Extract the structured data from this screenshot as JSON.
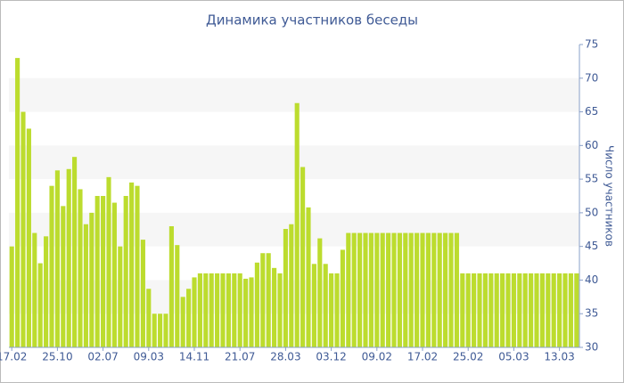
{
  "chart_data": {
    "type": "bar",
    "title": "Динамика участников беседы",
    "y_label": "Число участников",
    "categories": [
      "17.02",
      null,
      null,
      null,
      null,
      null,
      null,
      null,
      "25.10",
      null,
      null,
      null,
      null,
      null,
      null,
      null,
      "02.07",
      null,
      null,
      null,
      null,
      null,
      null,
      null,
      "09.03",
      null,
      null,
      null,
      null,
      null,
      null,
      null,
      "14.11",
      null,
      null,
      null,
      null,
      null,
      null,
      null,
      "21.07",
      null,
      null,
      null,
      null,
      null,
      null,
      null,
      "28.03",
      null,
      null,
      null,
      null,
      null,
      null,
      null,
      "03.12",
      null,
      null,
      null,
      null,
      null,
      null,
      null,
      "09.02",
      null,
      null,
      null,
      null,
      null,
      null,
      null,
      "17.02",
      null,
      null,
      null,
      null,
      null,
      null,
      null,
      "25.02",
      null,
      null,
      null,
      null,
      null,
      null,
      null,
      "05.03",
      null,
      null,
      null,
      null,
      null,
      null,
      null,
      "13.03",
      null,
      null,
      null
    ],
    "values": [
      45,
      73,
      65,
      62.5,
      47,
      42.5,
      46.5,
      54,
      56.3,
      51,
      56.5,
      58.3,
      53.5,
      48.3,
      50,
      52.5,
      52.5,
      55.3,
      51.5,
      45,
      52.5,
      54.5,
      54,
      46,
      38.7,
      35,
      35,
      35,
      48,
      45.2,
      37.5,
      38.7,
      40.4,
      41,
      41,
      41,
      41,
      41,
      41,
      41,
      41,
      40.2,
      40.4,
      42.6,
      44,
      44,
      41.8,
      41,
      47.6,
      48.3,
      66.3,
      56.8,
      50.8,
      42.4,
      46.2,
      42.4,
      41,
      41,
      44.5,
      47,
      47,
      47,
      47,
      47,
      47,
      47,
      47,
      47,
      47,
      47,
      47,
      47,
      47,
      47,
      47,
      47,
      47,
      47,
      47,
      41,
      41,
      41,
      41,
      41,
      41,
      41,
      41,
      41,
      41,
      41,
      41,
      41,
      41,
      41,
      41,
      41,
      41,
      41,
      41,
      41
    ],
    "color": "#bcdc2e",
    "ylim": [
      30,
      75
    ],
    "yticks": [
      30,
      35,
      40,
      45,
      50,
      55,
      60,
      65,
      70,
      75
    ],
    "bands": true
  }
}
